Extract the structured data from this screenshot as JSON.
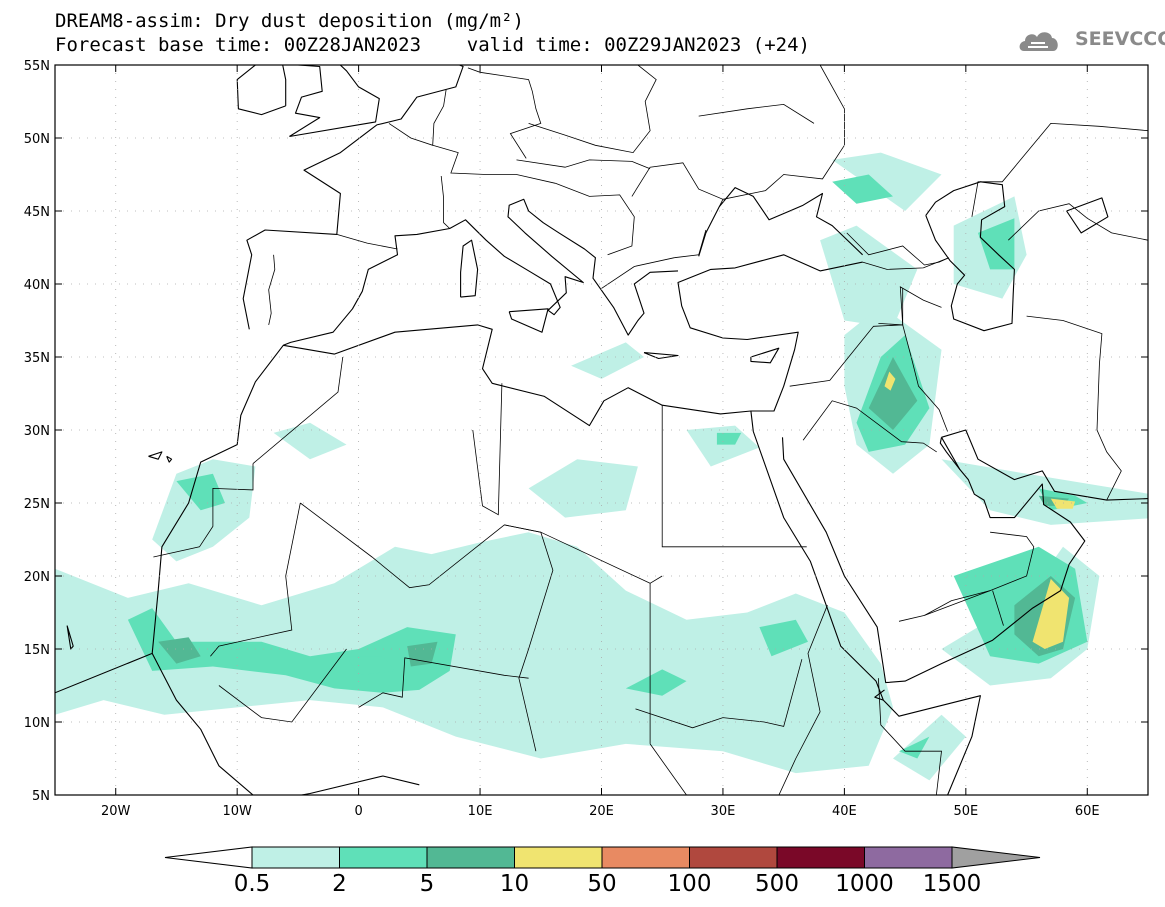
{
  "header": {
    "title_line1": "DREAM8-assim: Dry dust deposition (mg/m²)",
    "title_line2": "Forecast base time: 00Z28JAN2023    valid time: 00Z29JAN2023 (+24)"
  },
  "logo": {
    "text": "SEEVCCC",
    "icon": "cloud-icon"
  },
  "map": {
    "lon_range": [
      -25,
      65
    ],
    "lat_range": [
      5,
      55
    ],
    "lat_ticks": [
      "55N",
      "50N",
      "45N",
      "40N",
      "35N",
      "30N",
      "25N",
      "20N",
      "15N",
      "10N",
      "5N"
    ],
    "lon_ticks": [
      "20W",
      "10W",
      "0",
      "10E",
      "20E",
      "30E",
      "40E",
      "50E",
      "60E"
    ],
    "grid": true
  },
  "colorbar": {
    "labels": [
      "0.5",
      "2",
      "5",
      "10",
      "50",
      "100",
      "500",
      "1000",
      "1500"
    ],
    "colors": [
      "#bff0e6",
      "#5fe0b8",
      "#52b894",
      "#f0e470",
      "#e88a62",
      "#b0483e",
      "#7a0828",
      "#8e6aa0"
    ],
    "over_color": "#a0a0a0",
    "under_color": "#ffffff"
  }
}
